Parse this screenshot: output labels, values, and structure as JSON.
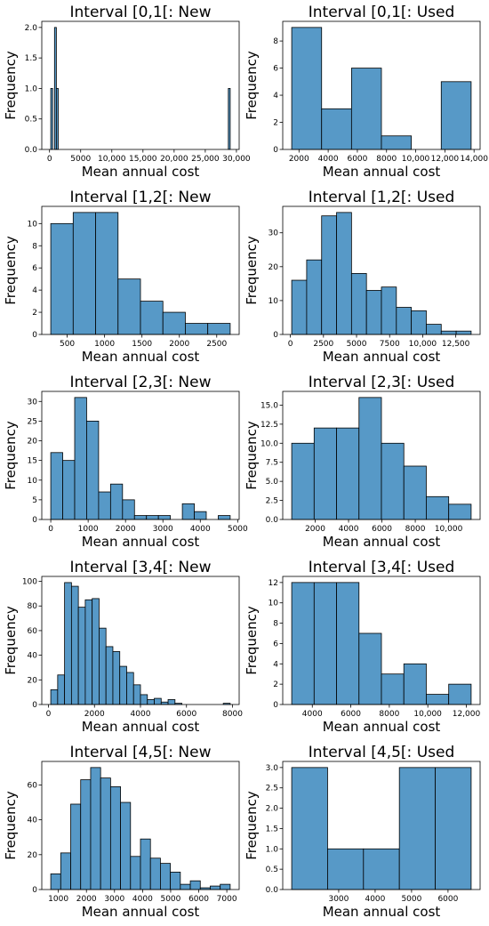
{
  "chart_data": [
    {
      "type": "histogram",
      "title": "Interval [0,1[: New",
      "xlabel": "Mean annual cost",
      "ylabel": "Frequency",
      "color": "#5799c7",
      "bins": [
        200,
        500,
        800,
        1100,
        1400,
        28700,
        29000
      ],
      "values": [
        1,
        0,
        2,
        1,
        0,
        1
      ],
      "xlim": [
        -1240,
        30440
      ],
      "ylim": [
        0,
        2.1
      ],
      "xticks": [
        0,
        5000,
        {
          "value": 10000,
          "label": "10,000"
        },
        {
          "value": 15000,
          "label": "15,000"
        },
        {
          "value": 20000,
          "label": "20,000"
        },
        {
          "value": 25000,
          "label": "25,000"
        },
        {
          "value": 30000,
          "label": "30,000"
        }
      ],
      "yticks": [
        {
          "value": 0,
          "label": "0.0"
        },
        {
          "value": 0.5,
          "label": "0.5"
        },
        {
          "value": 1,
          "label": "1.0"
        },
        {
          "value": 1.5,
          "label": "1.5"
        },
        {
          "value": 2,
          "label": "2.0"
        }
      ]
    },
    {
      "type": "histogram",
      "title": "Interval [0,1[: Used",
      "xlabel": "Mean annual cost",
      "ylabel": "Frequency",
      "color": "#5799c7",
      "bins": [
        1500,
        3550,
        5600,
        7650,
        9700,
        11750,
        13800
      ],
      "values": [
        9,
        3,
        6,
        1,
        0,
        5
      ],
      "xlim": [
        885,
        14415
      ],
      "ylim": [
        0,
        9.45
      ],
      "xticks": [
        2000,
        4000,
        6000,
        8000,
        {
          "value": 10000,
          "label": "10,000"
        },
        {
          "value": 12000,
          "label": "12,000"
        },
        {
          "value": 14000,
          "label": "14,000"
        }
      ],
      "yticks": [
        0,
        2,
        4,
        6,
        8
      ]
    },
    {
      "type": "histogram",
      "title": "Interval [1,2[: New",
      "xlabel": "Mean annual cost",
      "ylabel": "Frequency",
      "color": "#5799c7",
      "bins": [
        280,
        580,
        880,
        1180,
        1480,
        1780,
        2080,
        2380,
        2680
      ],
      "values": [
        10,
        11,
        11,
        5,
        3,
        2,
        1,
        1
      ],
      "xlim": [
        160,
        2800
      ],
      "ylim": [
        0,
        11.55
      ],
      "xticks": [
        500,
        1000,
        1500,
        2000,
        2500
      ],
      "yticks": [
        0,
        2,
        4,
        6,
        8,
        10
      ]
    },
    {
      "type": "histogram",
      "title": "Interval [1,2[: Used",
      "xlabel": "Mean annual cost",
      "ylabel": "Frequency",
      "color": "#5799c7",
      "bins": [
        100,
        1230,
        2360,
        3490,
        4620,
        5750,
        6880,
        8010,
        9140,
        10270,
        11400,
        12530,
        13660
      ],
      "values": [
        16,
        22,
        35,
        36,
        18,
        13,
        14,
        8,
        7,
        3,
        1,
        1
      ],
      "xlim": [
        -578,
        14338
      ],
      "ylim": [
        0,
        37.8
      ],
      "xticks": [
        0,
        2500,
        5000,
        7500,
        {
          "value": 10000,
          "label": "10,000"
        },
        {
          "value": 12500,
          "label": "12,500"
        }
      ],
      "yticks": [
        0,
        10,
        20,
        30
      ]
    },
    {
      "type": "histogram",
      "title": "Interval [2,3[: New",
      "xlabel": "Mean annual cost",
      "ylabel": "Frequency",
      "color": "#5799c7",
      "bins": [
        0,
        320,
        640,
        960,
        1280,
        1600,
        1920,
        2240,
        2560,
        2880,
        3200,
        3520,
        3840,
        4160,
        4480,
        4800
      ],
      "values": [
        17,
        15,
        31,
        25,
        7,
        9,
        5,
        1,
        1,
        1,
        0,
        4,
        2,
        0,
        1
      ],
      "xlim": [
        -240,
        5040
      ],
      "ylim": [
        0,
        32.55
      ],
      "xticks": [
        0,
        1000,
        2000,
        3000,
        4000,
        5000
      ],
      "yticks": [
        0,
        5,
        10,
        15,
        20,
        25,
        30
      ]
    },
    {
      "type": "histogram",
      "title": "Interval [2,3[: Used",
      "xlabel": "Mean annual cost",
      "ylabel": "Frequency",
      "color": "#5799c7",
      "bins": [
        590,
        1935,
        3280,
        4625,
        5970,
        7315,
        8660,
        10005,
        11350
      ],
      "values": [
        10,
        12,
        12,
        16,
        10,
        7,
        3,
        2
      ],
      "xlim": [
        52,
        11888
      ],
      "ylim": [
        0,
        16.8
      ],
      "xticks": [
        2000,
        4000,
        6000,
        8000,
        {
          "value": 10000,
          "label": "10,000"
        }
      ],
      "yticks": [
        {
          "value": 0,
          "label": "0.0"
        },
        {
          "value": 2.5,
          "label": "2.5"
        },
        {
          "value": 5,
          "label": "5.0"
        },
        {
          "value": 7.5,
          "label": "7.5"
        },
        {
          "value": 10,
          "label": "10.0"
        },
        {
          "value": 12.5,
          "label": "12.5"
        },
        {
          "value": 15,
          "label": "15.0"
        }
      ]
    },
    {
      "type": "histogram",
      "title": "Interval [3,4[: New",
      "xlabel": "Mean annual cost",
      "ylabel": "Frequency",
      "color": "#5799c7",
      "bins": [
        100,
        400,
        700,
        1000,
        1300,
        1600,
        1900,
        2200,
        2500,
        2800,
        3100,
        3400,
        3700,
        4000,
        4300,
        4600,
        4900,
        5200,
        5500,
        5800,
        6100,
        6400,
        6700,
        7000,
        7300,
        7600,
        7900
      ],
      "values": [
        12,
        24,
        99,
        96,
        79,
        85,
        86,
        62,
        47,
        43,
        31,
        26,
        16,
        8,
        4,
        5,
        2,
        4,
        1,
        0,
        0,
        0,
        0,
        0,
        0,
        1
      ],
      "xlim": [
        -290,
        8290
      ],
      "ylim": [
        0,
        104
      ],
      "xticks": [
        0,
        2000,
        4000,
        6000,
        8000
      ],
      "yticks": [
        0,
        20,
        40,
        60,
        80,
        100
      ]
    },
    {
      "type": "histogram",
      "title": "Interval [3,4[: Used",
      "xlabel": "Mean annual cost",
      "ylabel": "Frequency",
      "color": "#5799c7",
      "bins": [
        2930,
        4095,
        5260,
        6425,
        7590,
        8755,
        9920,
        11085,
        12250
      ],
      "values": [
        12,
        12,
        12,
        7,
        3,
        4,
        1,
        2
      ],
      "xlim": [
        2464,
        12716
      ],
      "ylim": [
        0,
        12.6
      ],
      "xticks": [
        4000,
        6000,
        8000,
        {
          "value": 10000,
          "label": "10,000"
        },
        {
          "value": 12000,
          "label": "12,000"
        }
      ],
      "yticks": [
        0,
        2,
        4,
        6,
        8,
        10,
        12
      ]
    },
    {
      "type": "histogram",
      "title": "Interval [4,5[: New",
      "xlabel": "Mean annual cost",
      "ylabel": "Frequency",
      "color": "#5799c7",
      "bins": [
        730,
        1085,
        1440,
        1795,
        2150,
        2505,
        2860,
        3215,
        3570,
        3925,
        4280,
        4635,
        4990,
        5345,
        5700,
        6055,
        6410,
        6765,
        7120
      ],
      "values": [
        9,
        21,
        49,
        63,
        70,
        64,
        59,
        50,
        19,
        29,
        18,
        15,
        10,
        3,
        5,
        1,
        2,
        3
      ],
      "xlim": [
        410,
        7440
      ],
      "ylim": [
        0,
        73.5
      ],
      "xticks": [
        1000,
        2000,
        3000,
        4000,
        5000,
        6000,
        7000
      ],
      "yticks": [
        0,
        20,
        40,
        60
      ]
    },
    {
      "type": "histogram",
      "title": "Interval [4,5[: Used",
      "xlabel": "Mean annual cost",
      "ylabel": "Frequency",
      "color": "#5799c7",
      "bins": [
        1710,
        2695,
        3680,
        4665,
        5650,
        6635
      ],
      "values": [
        3,
        1,
        1,
        3,
        3
      ],
      "xlim": [
        1464,
        6881
      ],
      "ylim": [
        0,
        3.15
      ],
      "xticks": [
        3000,
        4000,
        5000,
        6000
      ],
      "yticks": [
        {
          "value": 0,
          "label": "0.0"
        },
        {
          "value": 0.5,
          "label": "0.5"
        },
        {
          "value": 1,
          "label": "1.0"
        },
        {
          "value": 1.5,
          "label": "1.5"
        },
        {
          "value": 2,
          "label": "2.0"
        },
        {
          "value": 2.5,
          "label": "2.5"
        },
        {
          "value": 3,
          "label": "3.0"
        }
      ]
    }
  ]
}
